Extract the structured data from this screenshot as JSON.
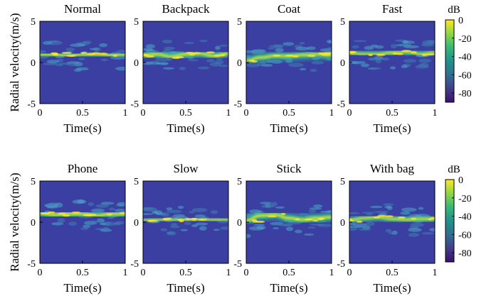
{
  "chart_data": {
    "type": "heatmap",
    "ylabel": "Radial velocity(m/s)",
    "xlabel": "Time(s)",
    "xlim": [
      0,
      1
    ],
    "ylim": [
      -5,
      5
    ],
    "x_ticks": [
      "0",
      "0.5",
      "1"
    ],
    "y_ticks": [
      "5",
      "0",
      "-5"
    ],
    "colorbar": {
      "unit": "dB",
      "range": [
        -90,
        0
      ],
      "ticks": [
        "0",
        "-20",
        "-40",
        "-60",
        "-80"
      ],
      "colors": [
        "#3b0f70",
        "#433d8b",
        "#2f6f8e",
        "#21918c",
        "#35b779",
        "#8fd744",
        "#fde725"
      ]
    },
    "background_color": "#3a3fa1",
    "grid": false,
    "rows": [
      {
        "panels": [
          {
            "title": "Normal",
            "center": [
              1.0,
              1.0,
              0.8,
              1.0,
              1.0,
              0.9,
              1.0
            ],
            "intensity": 0.85
          },
          {
            "title": "Backpack",
            "center": [
              0.9,
              1.0,
              0.7,
              1.0,
              1.1,
              0.8,
              1.1
            ],
            "intensity": 0.95
          },
          {
            "title": "Coat",
            "center": [
              0.2,
              0.6,
              0.8,
              0.8,
              0.9,
              1.0,
              0.9
            ],
            "intensity": 0.9
          },
          {
            "title": "Fast",
            "center": [
              1.1,
              1.0,
              1.0,
              1.2,
              1.3,
              1.0,
              1.2
            ],
            "intensity": 0.8
          }
        ]
      },
      {
        "panels": [
          {
            "title": "Phone",
            "center": [
              1.1,
              0.9,
              1.0,
              1.0,
              0.8,
              1.0,
              1.0
            ],
            "intensity": 0.95
          },
          {
            "title": "Slow",
            "center": [
              0.2,
              0.3,
              0.3,
              0.3,
              0.4,
              0.3,
              0.3
            ],
            "intensity": 0.7
          },
          {
            "title": "Stick",
            "center": [
              0.2,
              0.8,
              0.9,
              0.5,
              0.3,
              0.5,
              0.6
            ],
            "intensity": 0.95
          },
          {
            "title": "With bag",
            "center": [
              0.2,
              0.5,
              0.6,
              0.4,
              0.3,
              0.4,
              0.4
            ],
            "intensity": 0.85
          }
        ]
      }
    ]
  }
}
